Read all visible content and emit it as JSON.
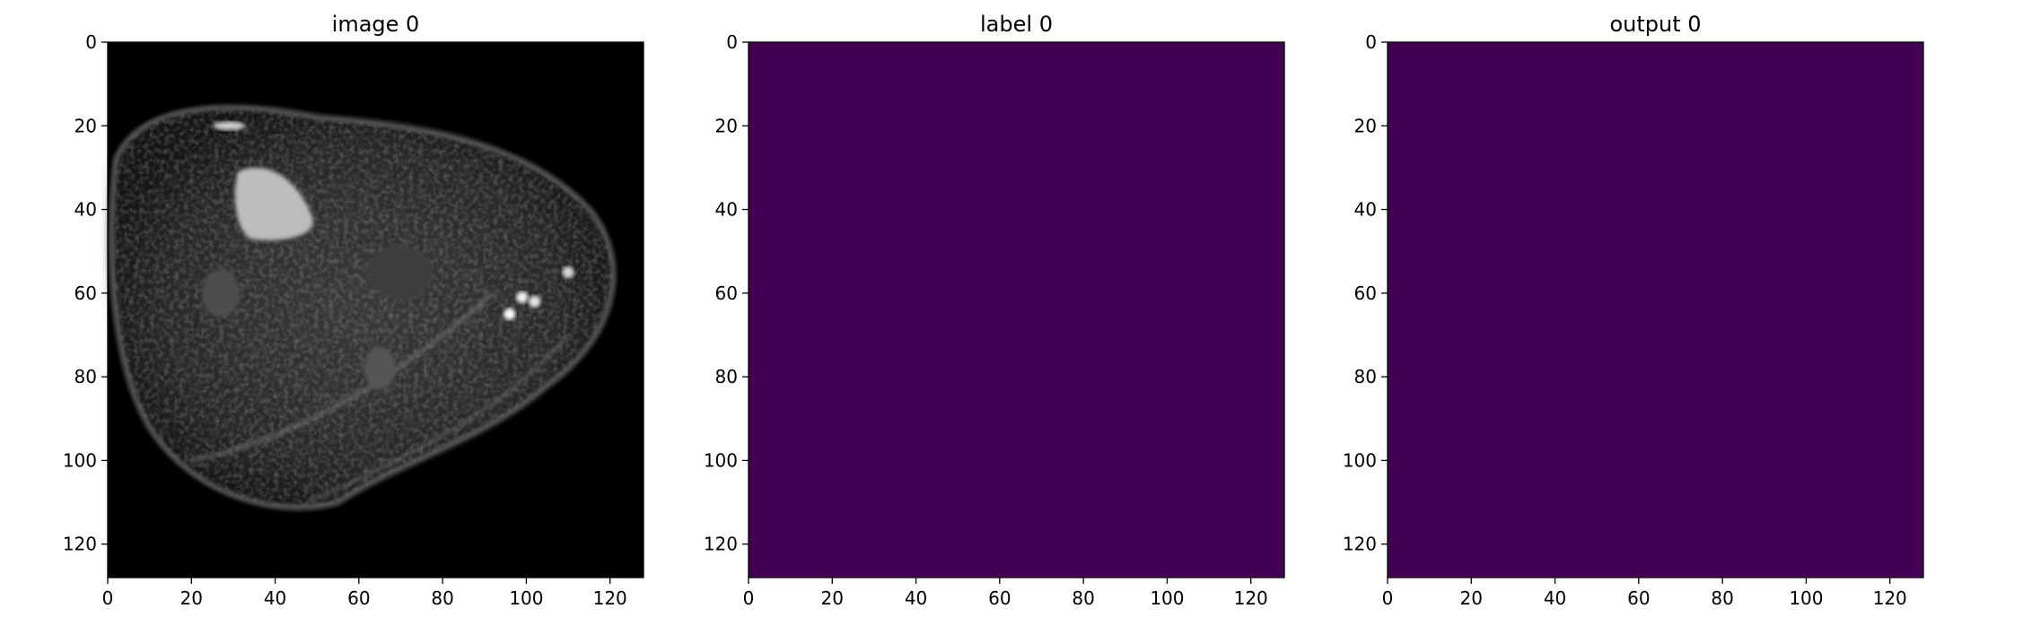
{
  "chart_data": [
    {
      "type": "heatmap",
      "title": "image 0",
      "colormap": "gray",
      "xlim": [
        0,
        128
      ],
      "ylim": [
        128,
        0
      ],
      "xticks": [
        0,
        20,
        40,
        60,
        80,
        100,
        120
      ],
      "yticks": [
        0,
        20,
        40,
        60,
        80,
        100,
        120
      ],
      "xtick_labels": [
        "0",
        "20",
        "40",
        "60",
        "80",
        "100",
        "120"
      ],
      "ytick_labels": [
        "0",
        "20",
        "40",
        "60",
        "80",
        "100",
        "120"
      ],
      "content": "grayscale MRI slice",
      "bright_regions": [
        {
          "x": 33,
          "y": 40,
          "value": 0.75
        },
        {
          "x": 96,
          "y": 65,
          "value": 1.0
        },
        {
          "x": 99,
          "y": 61,
          "value": 0.95
        },
        {
          "x": 102,
          "y": 62,
          "value": 0.9
        },
        {
          "x": 110,
          "y": 55,
          "value": 0.85
        },
        {
          "x": 29,
          "y": 20,
          "value": 0.7
        }
      ]
    },
    {
      "type": "heatmap",
      "title": "label 0",
      "colormap": "viridis",
      "fill_color": "#440154",
      "value": 0,
      "xlim": [
        0,
        128
      ],
      "ylim": [
        128,
        0
      ],
      "xticks": [
        0,
        20,
        40,
        60,
        80,
        100,
        120
      ],
      "yticks": [
        0,
        20,
        40,
        60,
        80,
        100,
        120
      ],
      "xtick_labels": [
        "0",
        "20",
        "40",
        "60",
        "80",
        "100",
        "120"
      ],
      "ytick_labels": [
        "0",
        "20",
        "40",
        "60",
        "80",
        "100",
        "120"
      ]
    },
    {
      "type": "heatmap",
      "title": "output 0",
      "colormap": "viridis",
      "fill_color": "#440154",
      "value": 0,
      "xlim": [
        0,
        128
      ],
      "ylim": [
        128,
        0
      ],
      "xticks": [
        0,
        20,
        40,
        60,
        80,
        100,
        120
      ],
      "yticks": [
        0,
        20,
        40,
        60,
        80,
        100,
        120
      ],
      "xtick_labels": [
        "0",
        "20",
        "40",
        "60",
        "80",
        "100",
        "120"
      ],
      "ytick_labels": [
        "0",
        "20",
        "40",
        "60",
        "80",
        "100",
        "120"
      ]
    }
  ]
}
